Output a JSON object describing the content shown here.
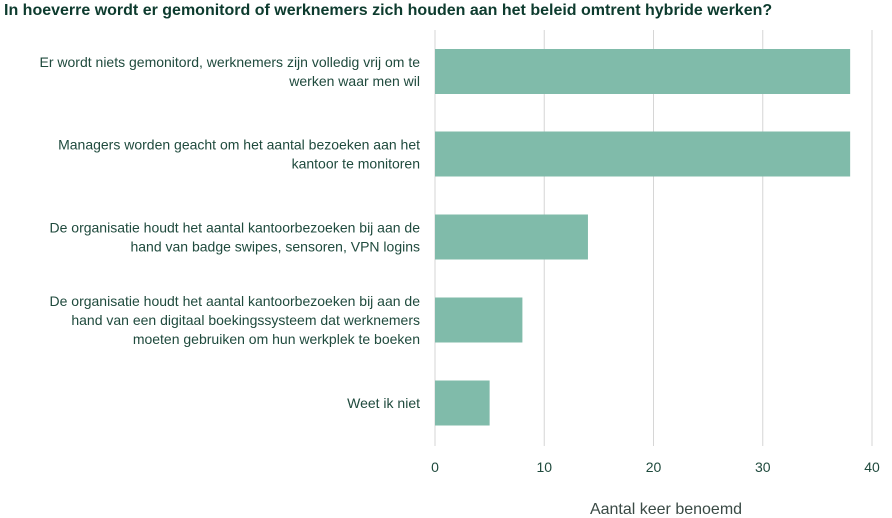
{
  "colors": {
    "bar": "#80bbaa",
    "grid": "#d6d6d6",
    "text": "#1f4a3d",
    "title": "#0d3b2e"
  },
  "chart_data": {
    "type": "bar",
    "orientation": "horizontal",
    "title": "In hoeverre wordt er gemonitord of werknemers zich houden aan het beleid omtrent hybride werken?",
    "xlabel": "Aantal keer benoemd",
    "ylabel": "",
    "xlim": [
      0,
      40
    ],
    "xticks": [
      0,
      10,
      20,
      30,
      40
    ],
    "grid": true,
    "categories": [
      [
        "Er wordt niets gemonitord, werknemers zijn volledig vrij om te",
        "werken waar men wil"
      ],
      [
        "Managers worden geacht om het aantal bezoeken aan het",
        "kantoor te monitoren"
      ],
      [
        "De organisatie houdt het aantal kantoorbezoeken bij aan de",
        "hand van badge swipes, sensoren, VPN logins"
      ],
      [
        "De organisatie houdt het aantal kantoorbezoeken bij aan de",
        "hand van een digitaal boekingssysteem dat werknemers",
        "moeten gebruiken om hun werkplek te boeken"
      ],
      [
        "Weet ik niet"
      ]
    ],
    "values": [
      38,
      38,
      14,
      8,
      5
    ]
  }
}
